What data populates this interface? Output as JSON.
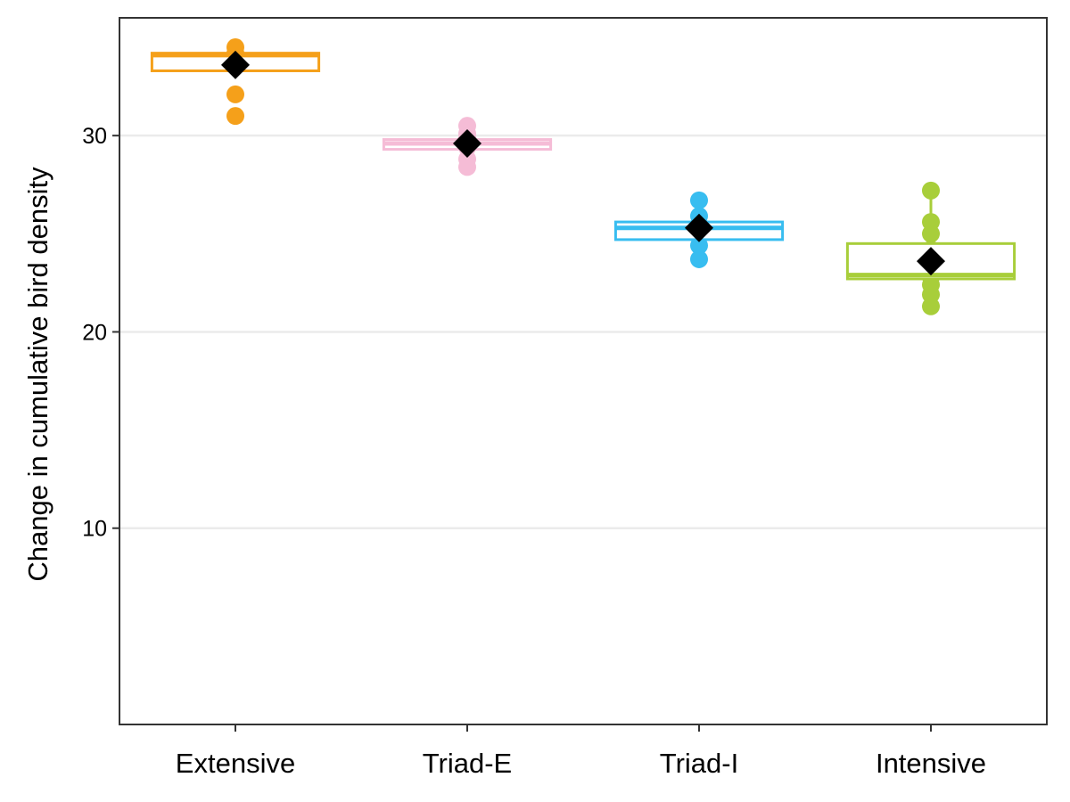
{
  "chart_data": {
    "type": "box",
    "ylabel": "Change in cumulative bird density",
    "xlabel": "",
    "ylim": [
      0,
      36
    ],
    "yticks": [
      10,
      20,
      30
    ],
    "grid": "horizontal-major",
    "legend": "none",
    "categories": [
      "Extensive",
      "Triad-E",
      "Triad-I",
      "Intensive"
    ],
    "colors": [
      "#f5a01a",
      "#f5bcd6",
      "#38bdf0",
      "#a8ce3a"
    ],
    "mean_color": "#000000",
    "boxes": [
      {
        "q1": 33.3,
        "median": 34.1,
        "q3": 34.2,
        "whisker_low": 33.3,
        "whisker_high": 34.5,
        "mean": 33.6,
        "points": [
          34.5,
          34.2,
          33.9,
          32.1,
          31.0
        ]
      },
      {
        "q1": 29.3,
        "median": 29.6,
        "q3": 29.8,
        "whisker_low": 28.4,
        "whisker_high": 30.5,
        "mean": 29.6,
        "points": [
          30.5,
          30.1,
          29.9,
          29.4,
          28.8,
          28.4
        ]
      },
      {
        "q1": 24.7,
        "median": 25.3,
        "q3": 25.6,
        "whisker_low": 23.7,
        "whisker_high": 26.7,
        "mean": 25.3,
        "points": [
          26.7,
          25.9,
          25.5,
          24.9,
          24.4,
          23.7
        ]
      },
      {
        "q1": 22.7,
        "median": 22.9,
        "q3": 24.5,
        "whisker_low": 21.3,
        "whisker_high": 27.2,
        "mean": 23.6,
        "points": [
          27.2,
          25.6,
          25.0,
          24.2,
          23.5,
          22.8,
          22.4,
          21.9,
          21.3
        ]
      }
    ]
  }
}
